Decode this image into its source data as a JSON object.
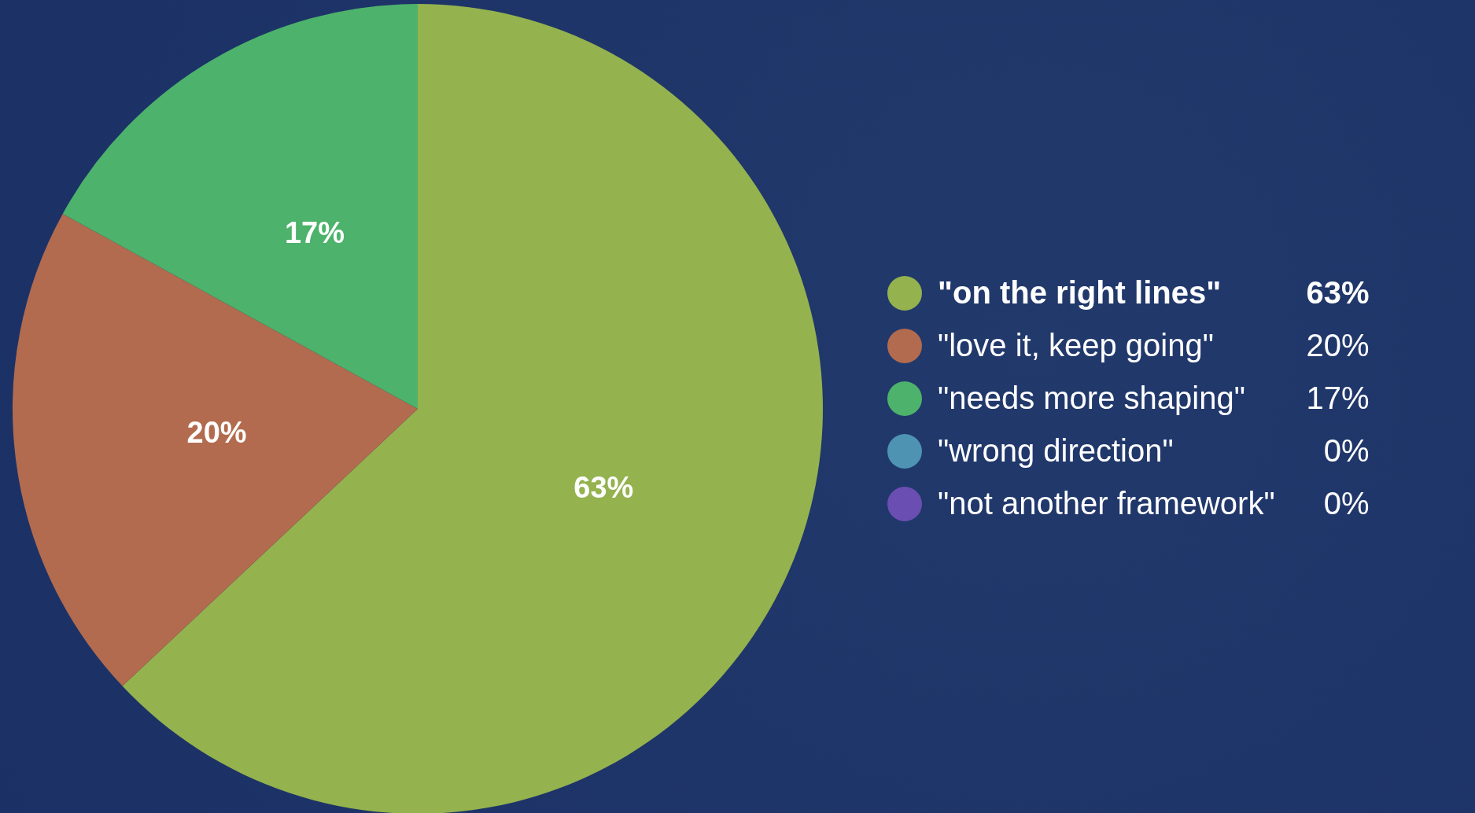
{
  "chart_data": {
    "type": "pie",
    "categories": [
      "\"on the right lines\"",
      "\"love it, keep going\"",
      "\"needs more shaping\"",
      "\"wrong direction\"",
      "\"not another framework\""
    ],
    "values": [
      63,
      20,
      17,
      0,
      0
    ],
    "colors": [
      "#94b24e",
      "#b26b4e",
      "#4db26b",
      "#4e94b2",
      "#6b4eb2"
    ],
    "value_labels": [
      "63%",
      "20%",
      "17%",
      "0%",
      "0%"
    ],
    "legend": "right"
  }
}
